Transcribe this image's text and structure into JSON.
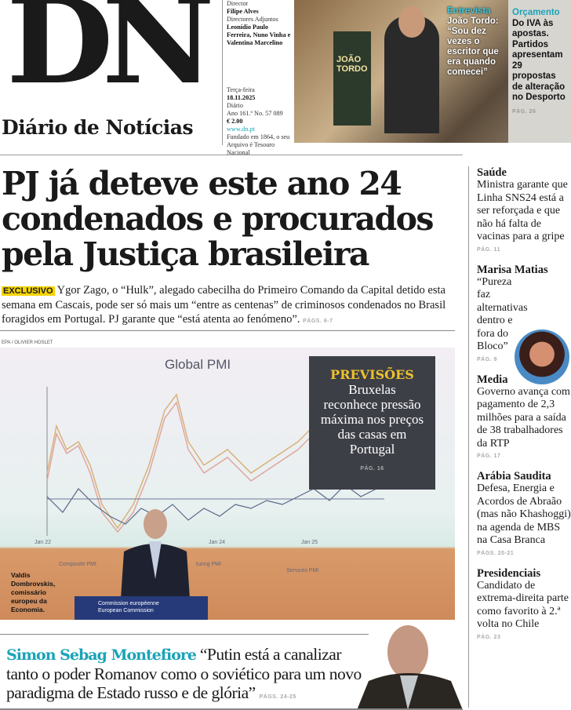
{
  "masthead": {
    "logo": "DN",
    "name": "Diário de Notícias",
    "director_label": "Director",
    "director": "Filipe Alves",
    "deputies_label": "Directores Adjuntos",
    "deputies": "Leonídio Paulo Ferreira, Nuno Vinha e Valentina Marcelino",
    "weekday": "Terça-feira",
    "date": "18.11.2025",
    "frequency": "Diário",
    "issue": "Ano 161.º No. 57 089",
    "price": "€ 2.00",
    "url": "www.dn.pt",
    "founded": "Fundado em 1864, o seu Arquivo é Tesouro Nacional"
  },
  "top_teasers": {
    "interview": {
      "kicker": "Entrevista",
      "text": "João Tordo: “Sou dez vezes o escritor que era quando comecei”",
      "book": "JOÃO TORDO"
    },
    "budget": {
      "kicker": "Orçamento",
      "text": "Do IVA às apostas. Partidos apresentam 29 propostas de alteração no Desporto",
      "page": "PÁG. 26"
    }
  },
  "lead": {
    "headline": "PJ já deteve este ano 24 condenados e procurados pela Justiça brasileira",
    "tag": "EXCLUSIVO",
    "text": "Ygor Zago, o “Hulk”, alegado cabecilha do Primeiro Comando da Capital detido esta semana em Cascais, pode ser só mais um “entre as centenas” de criminosos condenados no Brasil foragidos em Portugal. PJ garante que “está atenta ao fenómeno”.",
    "page": "PÁGS. 6-7"
  },
  "photo": {
    "credit": "EPA / OLIVIER HOSLET",
    "screen_title": "Global PMI",
    "screen_labels": [
      "Jan 22",
      "Jan 24",
      "Jan 25",
      "Composite PMI",
      "turing PMI",
      "Services PMI"
    ],
    "podium": "Commission européenne European Commission",
    "caption": "Valdis Dombrovskis, comissário europeu da Economia."
  },
  "forecast": {
    "kicker": "PREVISÕES",
    "text": "Bruxelas reconhece pressão máxima nos preços das casas em Portugal",
    "page": "PÁG. 16"
  },
  "interview_bottom": {
    "name": "Simon Sebag Montefiore",
    "quote": "“Putin está a canalizar tanto o poder Romanov como o soviético para um novo paradigma de Estado russo e de glória”",
    "page": "PÁGS. 24-25"
  },
  "sidebar": [
    {
      "kicker": "Saúde",
      "text": "Ministra garante que Linha SNS24 está a ser reforçada e que não há falta de vacinas para a gripe",
      "page": "PÁG. 11"
    },
    {
      "kicker": "Marisa Matias",
      "text": "“Pureza faz alternativas dentro e fora do Bloco”",
      "page": "PÁG. 9"
    },
    {
      "kicker": "Media",
      "text": "Governo avança com pagamento de 2,3 milhões para a saída de 38 trabalhadores da RTP",
      "page": "PÁG. 17"
    },
    {
      "kicker": "Arábia Saudita",
      "text": "Defesa, Energia e Acordos de Abraão (mas não Khashoggi) na agenda de MBS na Casa Branca",
      "page": "PÁGS. 20-21"
    },
    {
      "kicker": "Presidenciais",
      "text": "Candidato de extrema-direita parte como favorito à 2.ª volta no Chile",
      "page": "PÁG. 23"
    }
  ],
  "colors": {
    "accent": "#1aa3b8",
    "highlight": "#f4d300",
    "forecast_kicker": "#f0c32b"
  }
}
